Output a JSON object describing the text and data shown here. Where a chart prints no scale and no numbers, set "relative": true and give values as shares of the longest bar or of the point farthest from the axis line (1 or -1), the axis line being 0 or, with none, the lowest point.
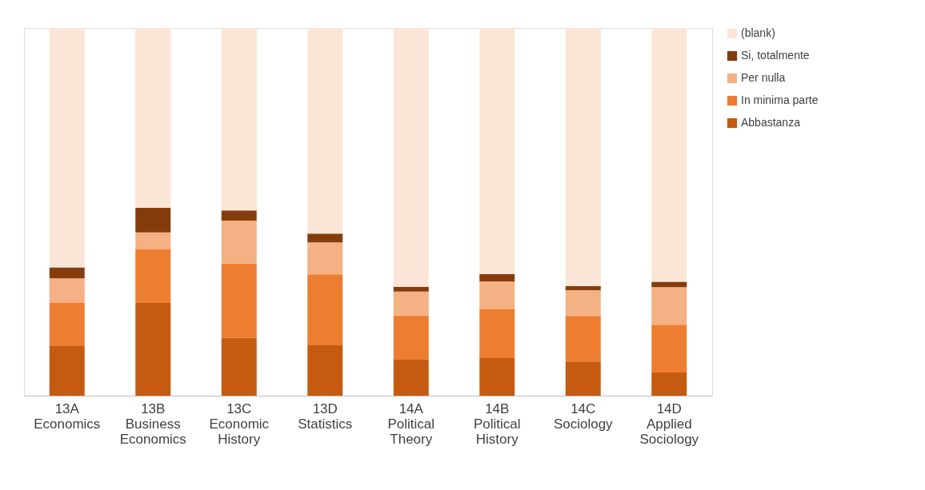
{
  "chart_data": {
    "type": "bar",
    "stacked": true,
    "relative": true,
    "legend": "right",
    "categories": [
      "13A Economics",
      "13B Business Economics",
      "13C Economic History",
      "13D Statistics",
      "14A Political Theory",
      "14B Political History",
      "14C Sociology",
      "14D Applied Sociology"
    ],
    "series": [
      {
        "name": "Abbastanza",
        "color": "#c55a11",
        "values": [
          0.135,
          0.252,
          0.157,
          0.137,
          0.098,
          0.102,
          0.093,
          0.063
        ]
      },
      {
        "name": "In minima parte",
        "color": "#ed7d31",
        "values": [
          0.117,
          0.146,
          0.202,
          0.193,
          0.12,
          0.133,
          0.124,
          0.13
        ]
      },
      {
        "name": "Per nulla",
        "color": "#f4b183",
        "values": [
          0.067,
          0.046,
          0.117,
          0.087,
          0.065,
          0.076,
          0.07,
          0.102
        ]
      },
      {
        "name": "Si, totalmente",
        "color": "#843c0c",
        "values": [
          0.03,
          0.067,
          0.028,
          0.024,
          0.013,
          0.02,
          0.011,
          0.015
        ]
      },
      {
        "name": "(blank)",
        "color": "#fbe5d6",
        "values": [
          0.651,
          0.489,
          0.496,
          0.559,
          0.704,
          0.669,
          0.702,
          0.69
        ]
      }
    ]
  }
}
